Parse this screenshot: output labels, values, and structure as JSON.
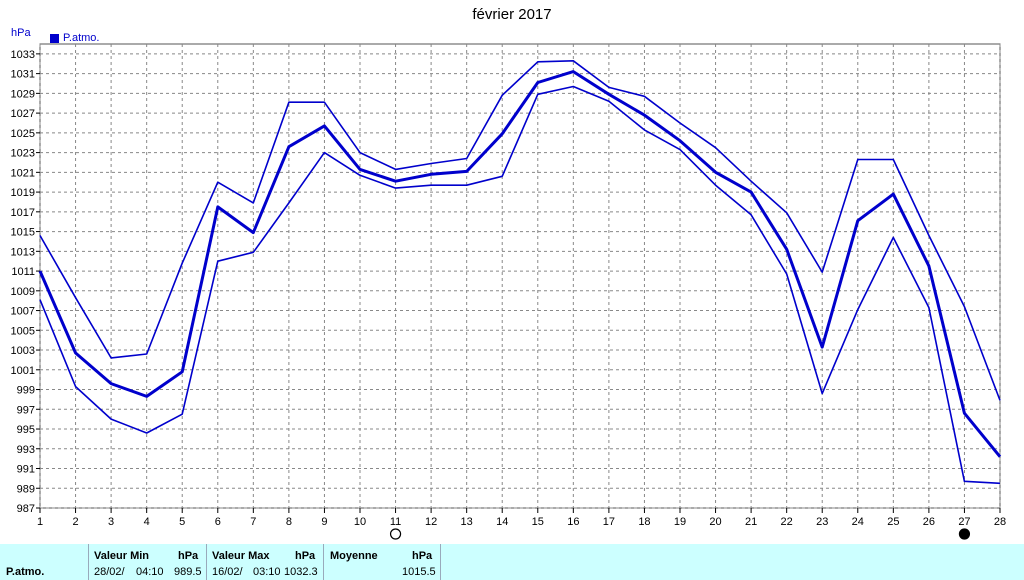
{
  "chart_data": {
    "type": "line",
    "title": "février 2017",
    "ylabel": "hPa",
    "legend": "top-left",
    "grid": true,
    "ylim": [
      987,
      1034
    ],
    "yticks": [
      987,
      989,
      991,
      993,
      995,
      997,
      999,
      1001,
      1003,
      1005,
      1007,
      1009,
      1011,
      1013,
      1015,
      1017,
      1019,
      1021,
      1023,
      1025,
      1027,
      1029,
      1031,
      1033
    ],
    "x": [
      1,
      2,
      3,
      4,
      5,
      6,
      7,
      8,
      9,
      10,
      11,
      12,
      13,
      14,
      15,
      16,
      17,
      18,
      19,
      20,
      21,
      22,
      23,
      24,
      25,
      26,
      27,
      28
    ],
    "series": [
      {
        "name": "P.atmo.",
        "values": [
          1011.0,
          1002.7,
          999.6,
          998.3,
          1000.8,
          1017.5,
          1014.9,
          1023.6,
          1025.7,
          1021.3,
          1020.1,
          1020.8,
          1021.1,
          1024.9,
          1030.1,
          1031.2,
          1028.9,
          1026.8,
          1024.2,
          1021.0,
          1019.0,
          1013.2,
          1003.3,
          1016.1,
          1018.8,
          1011.5,
          996.6,
          992.2
        ]
      },
      {
        "values": [
          1014.6,
          1008.3,
          1002.2,
          1002.6,
          1011.8,
          1020.0,
          1017.9,
          1028.1,
          1028.1,
          1023.0,
          1021.3,
          1021.9,
          1022.4,
          1028.8,
          1032.2,
          1032.3,
          1029.6,
          1028.7,
          1026.0,
          1023.5,
          1020.1,
          1016.9,
          1010.9,
          1022.3,
          1022.3,
          1014.6,
          1007.4,
          997.9
        ]
      },
      {
        "values": [
          1008.1,
          999.3,
          996.0,
          994.6,
          996.5,
          1012.0,
          1012.9,
          1017.9,
          1023.0,
          1020.7,
          1019.4,
          1019.7,
          1019.7,
          1020.6,
          1028.9,
          1029.7,
          1028.2,
          1025.3,
          1023.3,
          1019.7,
          1016.7,
          1010.7,
          998.6,
          1007.1,
          1014.4,
          1007.3,
          989.7,
          989.5
        ]
      }
    ],
    "markers": [
      {
        "x": 11,
        "symbol": "open-circle"
      },
      {
        "x": 27,
        "symbol": "filled-circle"
      }
    ]
  },
  "colors": {
    "series": "#0000cc",
    "grid": "#888888",
    "stats_bg": "#ccffff"
  },
  "stats": {
    "row_label": "P.atmo.",
    "min_header": "Valeur Min",
    "min_unit": "hPa",
    "min_date": "28/02/",
    "min_time": "04:10",
    "min_value": "989.5",
    "max_header": "Valeur Max",
    "max_unit": "hPa",
    "max_date": "16/02/",
    "max_time": "03:10",
    "max_value": "1032.3",
    "avg_header": "Moyenne",
    "avg_unit": "hPa",
    "avg_value": "1015.5"
  }
}
